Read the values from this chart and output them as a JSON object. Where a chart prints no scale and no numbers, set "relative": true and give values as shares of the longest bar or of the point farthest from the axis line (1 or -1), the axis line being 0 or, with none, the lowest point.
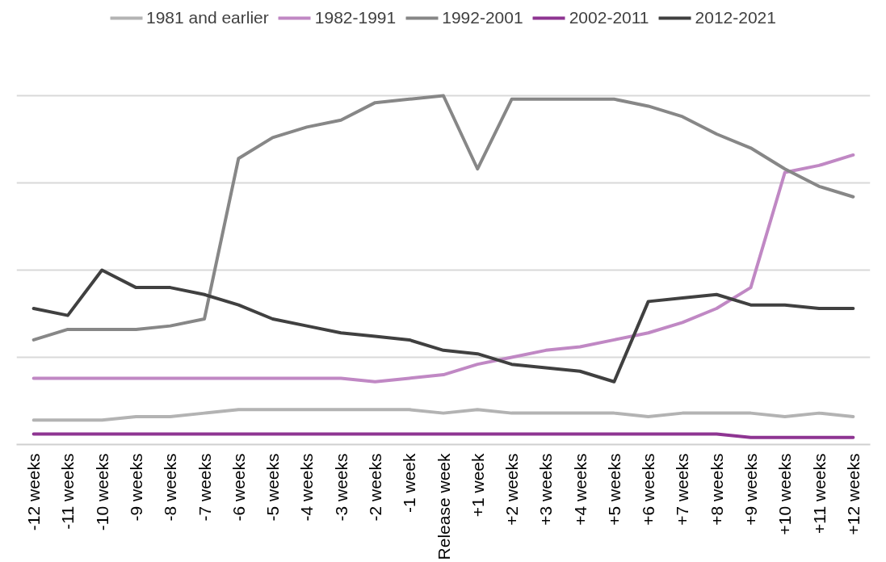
{
  "chart_data": {
    "type": "line",
    "relative": true,
    "grid": "y",
    "legend": "top",
    "categories": [
      "-12 weeks",
      "-11 weeks",
      "-10 weeks",
      "-9 weeks",
      "-8 weeks",
      "-7 weeks",
      "-6 weeks",
      "-5 weeks",
      "-4 weeks",
      "-3 weeks",
      "-2 weeks",
      "-1 week",
      "Release week",
      "+1 week",
      "+2 weeks",
      "+3 weeks",
      "+4 weeks",
      "+5 weeks",
      "+6 weeks",
      "+7 weeks",
      "+8 weeks",
      "+9 weeks",
      "+10 weeks",
      "+11 weeks",
      "+12 weeks"
    ],
    "series": [
      {
        "name": "1981 and earlier",
        "color": "#b3b3b3",
        "values": [
          0.07,
          0.07,
          0.07,
          0.08,
          0.08,
          0.09,
          0.1,
          0.1,
          0.1,
          0.1,
          0.1,
          0.1,
          0.09,
          0.1,
          0.09,
          0.09,
          0.09,
          0.09,
          0.08,
          0.09,
          0.09,
          0.09,
          0.08,
          0.09,
          0.08
        ]
      },
      {
        "name": "1982-1991",
        "color": "#c088c4",
        "values": [
          0.19,
          0.19,
          0.19,
          0.19,
          0.19,
          0.19,
          0.19,
          0.19,
          0.19,
          0.19,
          0.18,
          0.19,
          0.2,
          0.23,
          0.25,
          0.27,
          0.28,
          0.3,
          0.32,
          0.35,
          0.39,
          0.45,
          0.78,
          0.8,
          0.83
        ]
      },
      {
        "name": "1992-2001",
        "color": "#878787",
        "values": [
          0.3,
          0.33,
          0.33,
          0.33,
          0.34,
          0.36,
          0.82,
          0.88,
          0.91,
          0.93,
          0.98,
          0.99,
          1.0,
          0.79,
          0.99,
          0.99,
          0.99,
          0.99,
          0.97,
          0.94,
          0.89,
          0.85,
          0.79,
          0.74,
          0.71
        ]
      },
      {
        "name": "2002-2011",
        "color": "#8e3592",
        "values": [
          0.03,
          0.03,
          0.03,
          0.03,
          0.03,
          0.03,
          0.03,
          0.03,
          0.03,
          0.03,
          0.03,
          0.03,
          0.03,
          0.03,
          0.03,
          0.03,
          0.03,
          0.03,
          0.03,
          0.03,
          0.03,
          0.02,
          0.02,
          0.02,
          0.02
        ]
      },
      {
        "name": "2012-2021",
        "color": "#404040",
        "values": [
          0.39,
          0.37,
          0.5,
          0.45,
          0.45,
          0.43,
          0.4,
          0.36,
          0.34,
          0.32,
          0.31,
          0.3,
          0.27,
          0.26,
          0.23,
          0.22,
          0.21,
          0.18,
          0.41,
          0.42,
          0.43,
          0.4,
          0.4,
          0.39,
          0.39
        ]
      }
    ]
  }
}
